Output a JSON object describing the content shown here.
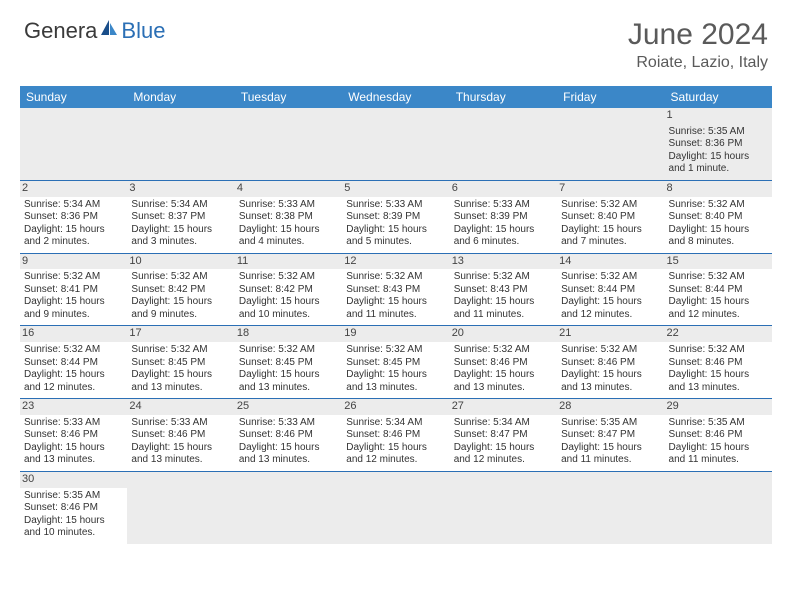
{
  "logo": {
    "part1": "Genera",
    "part2": "Blue"
  },
  "title": "June 2024",
  "location": "Roiate, Lazio, Italy",
  "colors": {
    "header_bg": "#3b87c8",
    "accent": "#2b6fb5",
    "daynum_bg": "#ececec",
    "text": "#333333"
  },
  "day_headers": [
    "Sunday",
    "Monday",
    "Tuesday",
    "Wednesday",
    "Thursday",
    "Friday",
    "Saturday"
  ],
  "weeks": [
    [
      null,
      null,
      null,
      null,
      null,
      null,
      {
        "n": "1",
        "sr": "Sunrise: 5:35 AM",
        "ss": "Sunset: 8:36 PM",
        "dl": "Daylight: 15 hours and 1 minute."
      }
    ],
    [
      {
        "n": "2",
        "sr": "Sunrise: 5:34 AM",
        "ss": "Sunset: 8:36 PM",
        "dl": "Daylight: 15 hours and 2 minutes."
      },
      {
        "n": "3",
        "sr": "Sunrise: 5:34 AM",
        "ss": "Sunset: 8:37 PM",
        "dl": "Daylight: 15 hours and 3 minutes."
      },
      {
        "n": "4",
        "sr": "Sunrise: 5:33 AM",
        "ss": "Sunset: 8:38 PM",
        "dl": "Daylight: 15 hours and 4 minutes."
      },
      {
        "n": "5",
        "sr": "Sunrise: 5:33 AM",
        "ss": "Sunset: 8:39 PM",
        "dl": "Daylight: 15 hours and 5 minutes."
      },
      {
        "n": "6",
        "sr": "Sunrise: 5:33 AM",
        "ss": "Sunset: 8:39 PM",
        "dl": "Daylight: 15 hours and 6 minutes."
      },
      {
        "n": "7",
        "sr": "Sunrise: 5:32 AM",
        "ss": "Sunset: 8:40 PM",
        "dl": "Daylight: 15 hours and 7 minutes."
      },
      {
        "n": "8",
        "sr": "Sunrise: 5:32 AM",
        "ss": "Sunset: 8:40 PM",
        "dl": "Daylight: 15 hours and 8 minutes."
      }
    ],
    [
      {
        "n": "9",
        "sr": "Sunrise: 5:32 AM",
        "ss": "Sunset: 8:41 PM",
        "dl": "Daylight: 15 hours and 9 minutes."
      },
      {
        "n": "10",
        "sr": "Sunrise: 5:32 AM",
        "ss": "Sunset: 8:42 PM",
        "dl": "Daylight: 15 hours and 9 minutes."
      },
      {
        "n": "11",
        "sr": "Sunrise: 5:32 AM",
        "ss": "Sunset: 8:42 PM",
        "dl": "Daylight: 15 hours and 10 minutes."
      },
      {
        "n": "12",
        "sr": "Sunrise: 5:32 AM",
        "ss": "Sunset: 8:43 PM",
        "dl": "Daylight: 15 hours and 11 minutes."
      },
      {
        "n": "13",
        "sr": "Sunrise: 5:32 AM",
        "ss": "Sunset: 8:43 PM",
        "dl": "Daylight: 15 hours and 11 minutes."
      },
      {
        "n": "14",
        "sr": "Sunrise: 5:32 AM",
        "ss": "Sunset: 8:44 PM",
        "dl": "Daylight: 15 hours and 12 minutes."
      },
      {
        "n": "15",
        "sr": "Sunrise: 5:32 AM",
        "ss": "Sunset: 8:44 PM",
        "dl": "Daylight: 15 hours and 12 minutes."
      }
    ],
    [
      {
        "n": "16",
        "sr": "Sunrise: 5:32 AM",
        "ss": "Sunset: 8:44 PM",
        "dl": "Daylight: 15 hours and 12 minutes."
      },
      {
        "n": "17",
        "sr": "Sunrise: 5:32 AM",
        "ss": "Sunset: 8:45 PM",
        "dl": "Daylight: 15 hours and 13 minutes."
      },
      {
        "n": "18",
        "sr": "Sunrise: 5:32 AM",
        "ss": "Sunset: 8:45 PM",
        "dl": "Daylight: 15 hours and 13 minutes."
      },
      {
        "n": "19",
        "sr": "Sunrise: 5:32 AM",
        "ss": "Sunset: 8:45 PM",
        "dl": "Daylight: 15 hours and 13 minutes."
      },
      {
        "n": "20",
        "sr": "Sunrise: 5:32 AM",
        "ss": "Sunset: 8:46 PM",
        "dl": "Daylight: 15 hours and 13 minutes."
      },
      {
        "n": "21",
        "sr": "Sunrise: 5:32 AM",
        "ss": "Sunset: 8:46 PM",
        "dl": "Daylight: 15 hours and 13 minutes."
      },
      {
        "n": "22",
        "sr": "Sunrise: 5:32 AM",
        "ss": "Sunset: 8:46 PM",
        "dl": "Daylight: 15 hours and 13 minutes."
      }
    ],
    [
      {
        "n": "23",
        "sr": "Sunrise: 5:33 AM",
        "ss": "Sunset: 8:46 PM",
        "dl": "Daylight: 15 hours and 13 minutes."
      },
      {
        "n": "24",
        "sr": "Sunrise: 5:33 AM",
        "ss": "Sunset: 8:46 PM",
        "dl": "Daylight: 15 hours and 13 minutes."
      },
      {
        "n": "25",
        "sr": "Sunrise: 5:33 AM",
        "ss": "Sunset: 8:46 PM",
        "dl": "Daylight: 15 hours and 13 minutes."
      },
      {
        "n": "26",
        "sr": "Sunrise: 5:34 AM",
        "ss": "Sunset: 8:46 PM",
        "dl": "Daylight: 15 hours and 12 minutes."
      },
      {
        "n": "27",
        "sr": "Sunrise: 5:34 AM",
        "ss": "Sunset: 8:47 PM",
        "dl": "Daylight: 15 hours and 12 minutes."
      },
      {
        "n": "28",
        "sr": "Sunrise: 5:35 AM",
        "ss": "Sunset: 8:47 PM",
        "dl": "Daylight: 15 hours and 11 minutes."
      },
      {
        "n": "29",
        "sr": "Sunrise: 5:35 AM",
        "ss": "Sunset: 8:46 PM",
        "dl": "Daylight: 15 hours and 11 minutes."
      }
    ],
    [
      {
        "n": "30",
        "sr": "Sunrise: 5:35 AM",
        "ss": "Sunset: 8:46 PM",
        "dl": "Daylight: 15 hours and 10 minutes."
      },
      null,
      null,
      null,
      null,
      null,
      null
    ]
  ]
}
